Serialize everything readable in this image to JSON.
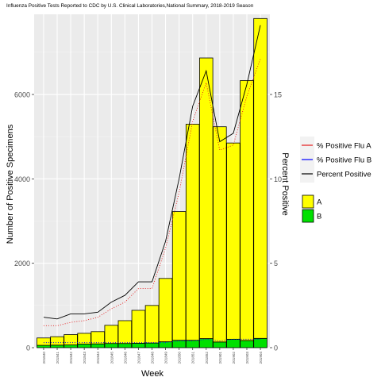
{
  "chart_data": {
    "type": "bar",
    "title": "Influenza Positive Tests Reported to CDC by U.S. Clinical Laboratories,National Summary, 2018-2019 Season",
    "xlabel": "Week",
    "ylabel": "Number of Positive Specimens",
    "y2label": "Percent Positive",
    "ylim": [
      0,
      7900
    ],
    "y2lim": [
      0,
      19.75
    ],
    "yticks": [
      0,
      2000,
      4000,
      6000
    ],
    "y2ticks": [
      0,
      5,
      10,
      15
    ],
    "grid": true,
    "legend_position": "right",
    "categories": [
      "201840",
      "201841",
      "201842",
      "201843",
      "201844",
      "201845",
      "201846",
      "201847",
      "201848",
      "201849",
      "201850",
      "201851",
      "201852",
      "201901",
      "201902",
      "201903",
      "201904"
    ],
    "stacked_series": [
      {
        "name": "B",
        "color": "#00e000",
        "values": [
          55,
          60,
          65,
          85,
          90,
          100,
          100,
          105,
          110,
          140,
          175,
          175,
          215,
          135,
          200,
          170,
          220
        ]
      },
      {
        "name": "A",
        "color": "#ffff00",
        "values": [
          175,
          200,
          245,
          255,
          290,
          430,
          540,
          780,
          890,
          1500,
          3050,
          5120,
          6650,
          5100,
          4650,
          6160,
          7580
        ]
      }
    ],
    "line_series": [
      {
        "name": "% Positive Flu A",
        "color": "#e41a1c",
        "dash": "1,2",
        "values": [
          1.3,
          1.3,
          1.5,
          1.6,
          1.8,
          2.3,
          2.7,
          3.5,
          3.5,
          5.9,
          9.2,
          13.4,
          15.7,
          11.7,
          12.0,
          14.9,
          17.1
        ]
      },
      {
        "name": "% Positive Flu B",
        "color": "#0000ff",
        "dash": "1,2",
        "values": [
          0.3,
          0.3,
          0.3,
          0.3,
          0.3,
          0.3,
          0.3,
          0.3,
          0.3,
          0.3,
          0.4,
          0.4,
          0.5,
          0.4,
          0.5,
          0.5,
          0.5
        ]
      },
      {
        "name": "Percent Positive",
        "color": "#000000",
        "dash": "",
        "values": [
          1.8,
          1.7,
          2.0,
          2.0,
          2.1,
          2.7,
          3.1,
          3.9,
          3.9,
          6.3,
          10.0,
          14.3,
          16.4,
          12.2,
          12.7,
          15.6,
          19.1
        ]
      }
    ]
  }
}
